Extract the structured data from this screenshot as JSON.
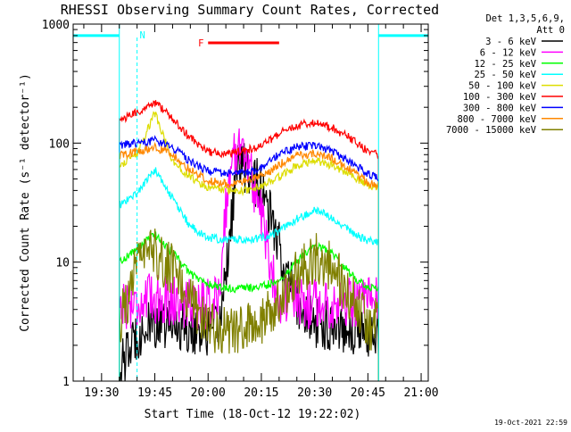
{
  "chart_data": {
    "type": "line",
    "title": "RHESSI Observing Summary Count Rates, Corrected",
    "xlabel": "Start Time (18-Oct-12 19:22:02)",
    "ylabel": "Corrected Count Rate (s⁻¹ detector⁻¹)",
    "yscale": "log",
    "ylim": [
      1,
      1000
    ],
    "xlim_minutes": [
      "19:22",
      "21:02"
    ],
    "x_tick_labels": [
      "19:30",
      "19:45",
      "20:00",
      "20:15",
      "20:30",
      "20:45",
      "21:00"
    ],
    "y_tick_labels": [
      "1",
      "10",
      "100",
      "1000"
    ],
    "legend_header": [
      "Det 1,3,5,6,9,",
      "Att 0"
    ],
    "legend_position": "top-right, outside plot",
    "timestamp": "19-Oct-2021 22:59",
    "data_window": [
      "19:35",
      "20:48"
    ],
    "night_intervals": [
      [
        "19:22",
        "19:35"
      ],
      [
        "20:48",
        "21:02"
      ]
    ],
    "saa_intervals": [],
    "markers": [
      {
        "label": "N",
        "time": "19:40",
        "color": "#00ffff"
      },
      {
        "label": "F",
        "start": "20:00",
        "end": "20:20",
        "color": "#ff0000"
      }
    ],
    "series": [
      {
        "name": "3 - 6 keV",
        "color": "#000000",
        "x": [
          "19:35",
          "19:40",
          "19:45",
          "19:50",
          "19:55",
          "20:00",
          "20:03",
          "20:06",
          "20:08",
          "20:10",
          "20:14",
          "20:18",
          "20:22",
          "20:26",
          "20:30",
          "20:35",
          "20:40",
          "20:45",
          "20:48"
        ],
        "values": [
          1.2,
          2.5,
          3,
          3,
          2.8,
          2.5,
          2.7,
          15,
          60,
          65,
          45,
          22,
          8,
          4,
          3,
          3,
          2.8,
          2.5,
          2.5
        ]
      },
      {
        "name": "6 - 12 keV",
        "color": "#ff00ff",
        "x": [
          "19:35",
          "19:40",
          "19:45",
          "19:50",
          "19:55",
          "20:00",
          "20:03",
          "20:05",
          "20:07",
          "20:09",
          "20:12",
          "20:15",
          "20:18",
          "20:20",
          "20:25",
          "20:30",
          "20:35",
          "20:40",
          "20:45",
          "20:48"
        ],
        "values": [
          4.5,
          4.5,
          5,
          4.8,
          4.5,
          4.5,
          5,
          30,
          70,
          110,
          55,
          25,
          8,
          5,
          4.5,
          4.5,
          4.5,
          4.5,
          4.5,
          4.5
        ]
      },
      {
        "name": "12 - 25 keV",
        "color": "#00ff00",
        "x": [
          "19:35",
          "19:40",
          "19:45",
          "19:50",
          "19:55",
          "20:00",
          "20:05",
          "20:10",
          "20:15",
          "20:20",
          "20:25",
          "20:30",
          "20:35",
          "20:40",
          "20:45",
          "20:48"
        ],
        "values": [
          10,
          13,
          17,
          12,
          8,
          6.5,
          6,
          6,
          6.2,
          7,
          10,
          14,
          12,
          8,
          6,
          6
        ]
      },
      {
        "name": "25 - 50 keV",
        "color": "#00ffff",
        "x": [
          "19:35",
          "19:40",
          "19:45",
          "19:50",
          "19:55",
          "20:00",
          "20:05",
          "20:10",
          "20:15",
          "20:20",
          "20:25",
          "20:30",
          "20:35",
          "20:40",
          "20:45",
          "20:48"
        ],
        "values": [
          30,
          38,
          60,
          34,
          20,
          16,
          15.5,
          15.5,
          16,
          18,
          23,
          27,
          24,
          18,
          15,
          15
        ]
      },
      {
        "name": "50 - 100 keV",
        "color": "#dddd00",
        "x": [
          "19:35",
          "19:40",
          "19:45",
          "19:50",
          "19:55",
          "20:00",
          "20:05",
          "20:10",
          "20:15",
          "20:20",
          "20:25",
          "20:30",
          "20:35",
          "20:40",
          "20:45",
          "20:48"
        ],
        "values": [
          65,
          80,
          180,
          70,
          52,
          42,
          40,
          40,
          43,
          52,
          65,
          72,
          65,
          55,
          44,
          42
        ]
      },
      {
        "name": "100 - 300 keV",
        "color": "#ff0000",
        "x": [
          "19:35",
          "19:40",
          "19:45",
          "19:50",
          "19:55",
          "20:00",
          "20:05",
          "20:10",
          "20:15",
          "20:20",
          "20:25",
          "20:30",
          "20:35",
          "20:40",
          "20:45",
          "20:48"
        ],
        "values": [
          155,
          180,
          220,
          160,
          110,
          85,
          80,
          85,
          95,
          120,
          140,
          150,
          135,
          110,
          85,
          80
        ]
      },
      {
        "name": "300 - 800 keV",
        "color": "#0000ff",
        "x": [
          "19:35",
          "19:40",
          "19:45",
          "19:50",
          "19:55",
          "20:00",
          "20:05",
          "20:10",
          "20:15",
          "20:20",
          "20:25",
          "20:30",
          "20:35",
          "20:40",
          "20:45",
          "20:48"
        ],
        "values": [
          95,
          100,
          105,
          92,
          70,
          58,
          55,
          56,
          62,
          80,
          93,
          95,
          85,
          70,
          55,
          50
        ]
      },
      {
        "name": "800 - 7000 keV",
        "color": "#ff8800",
        "x": [
          "19:35",
          "19:40",
          "19:45",
          "19:50",
          "19:55",
          "20:00",
          "20:05",
          "20:10",
          "20:15",
          "20:20",
          "20:25",
          "20:30",
          "20:35",
          "20:40",
          "20:45",
          "20:48"
        ],
        "values": [
          78,
          85,
          92,
          80,
          60,
          48,
          46,
          47,
          52,
          66,
          78,
          82,
          74,
          60,
          47,
          44
        ]
      },
      {
        "name": "7000 - 15000 keV",
        "color": "#808000",
        "x": [
          "19:35",
          "19:40",
          "19:45",
          "19:50",
          "19:55",
          "20:00",
          "20:05",
          "20:10",
          "20:15",
          "20:20",
          "20:25",
          "20:30",
          "20:35",
          "20:40",
          "20:45",
          "20:48"
        ],
        "values": [
          3,
          9,
          12,
          8.5,
          5,
          3,
          2.6,
          2.6,
          3.2,
          5,
          8,
          11,
          9,
          5,
          3,
          3
        ]
      }
    ]
  }
}
